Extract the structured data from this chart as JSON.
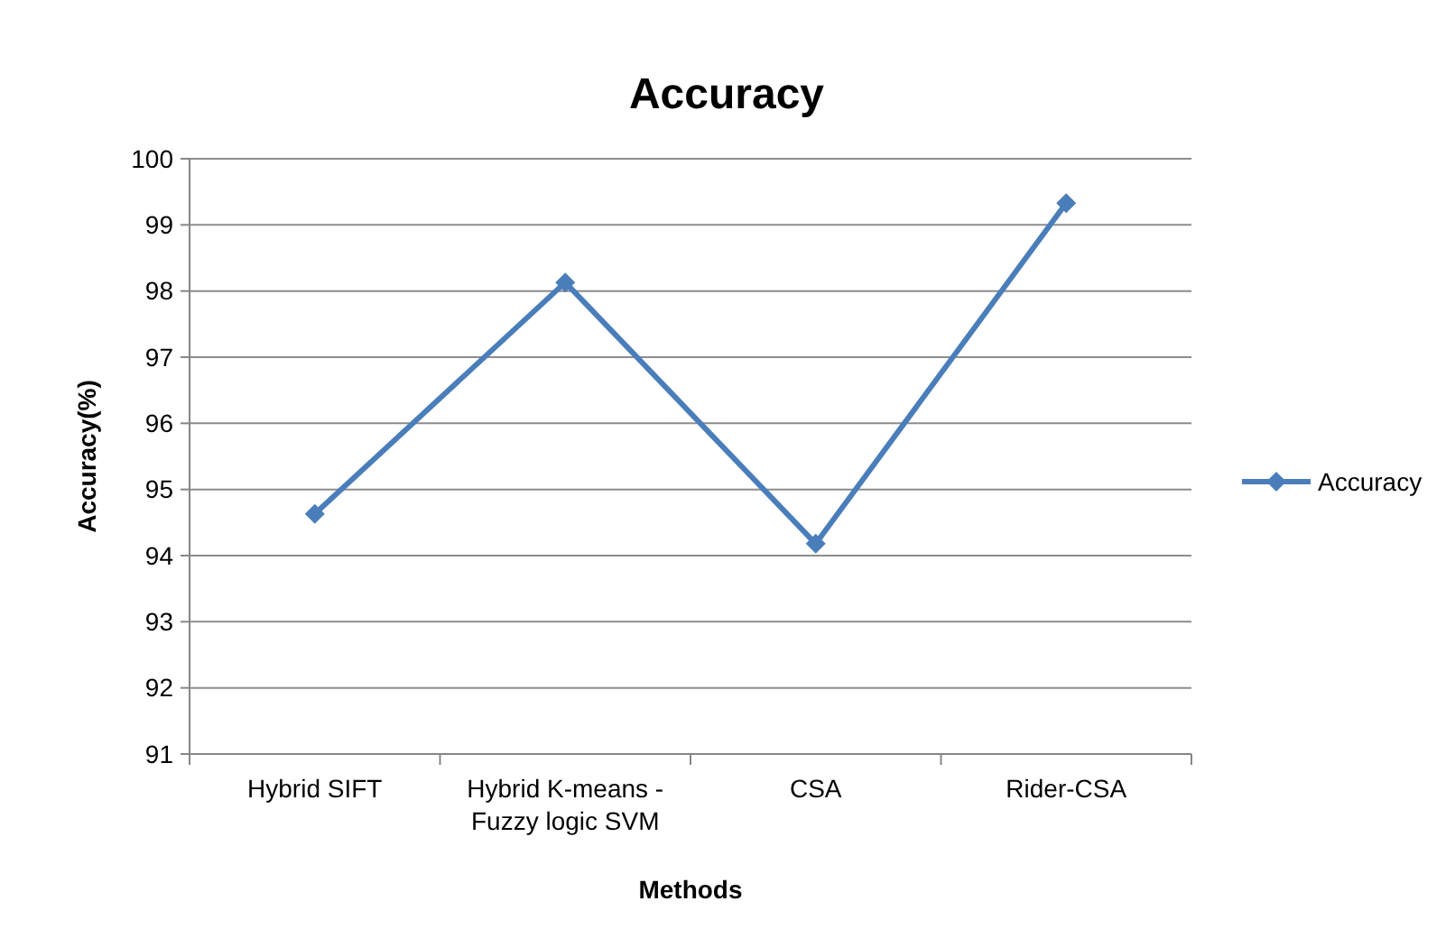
{
  "chart_data": {
    "type": "line",
    "title": "Accuracy",
    "xlabel": "Methods",
    "ylabel": "Accuracy(%)",
    "categories": [
      "Hybrid SIFT",
      "Hybrid K-means - Fuzzy logic SVM",
      "CSA",
      "Rider-CSA"
    ],
    "series": [
      {
        "name": "Accuracy",
        "color": "#4a7ebb",
        "values": [
          94.63,
          98.13,
          94.18,
          99.33
        ]
      }
    ],
    "ylim": [
      91,
      100
    ],
    "yticks": [
      91,
      92,
      93,
      94,
      95,
      96,
      97,
      98,
      99,
      100
    ],
    "grid": "y",
    "legend": "right",
    "marker": "diamond",
    "line_style": "solid"
  }
}
